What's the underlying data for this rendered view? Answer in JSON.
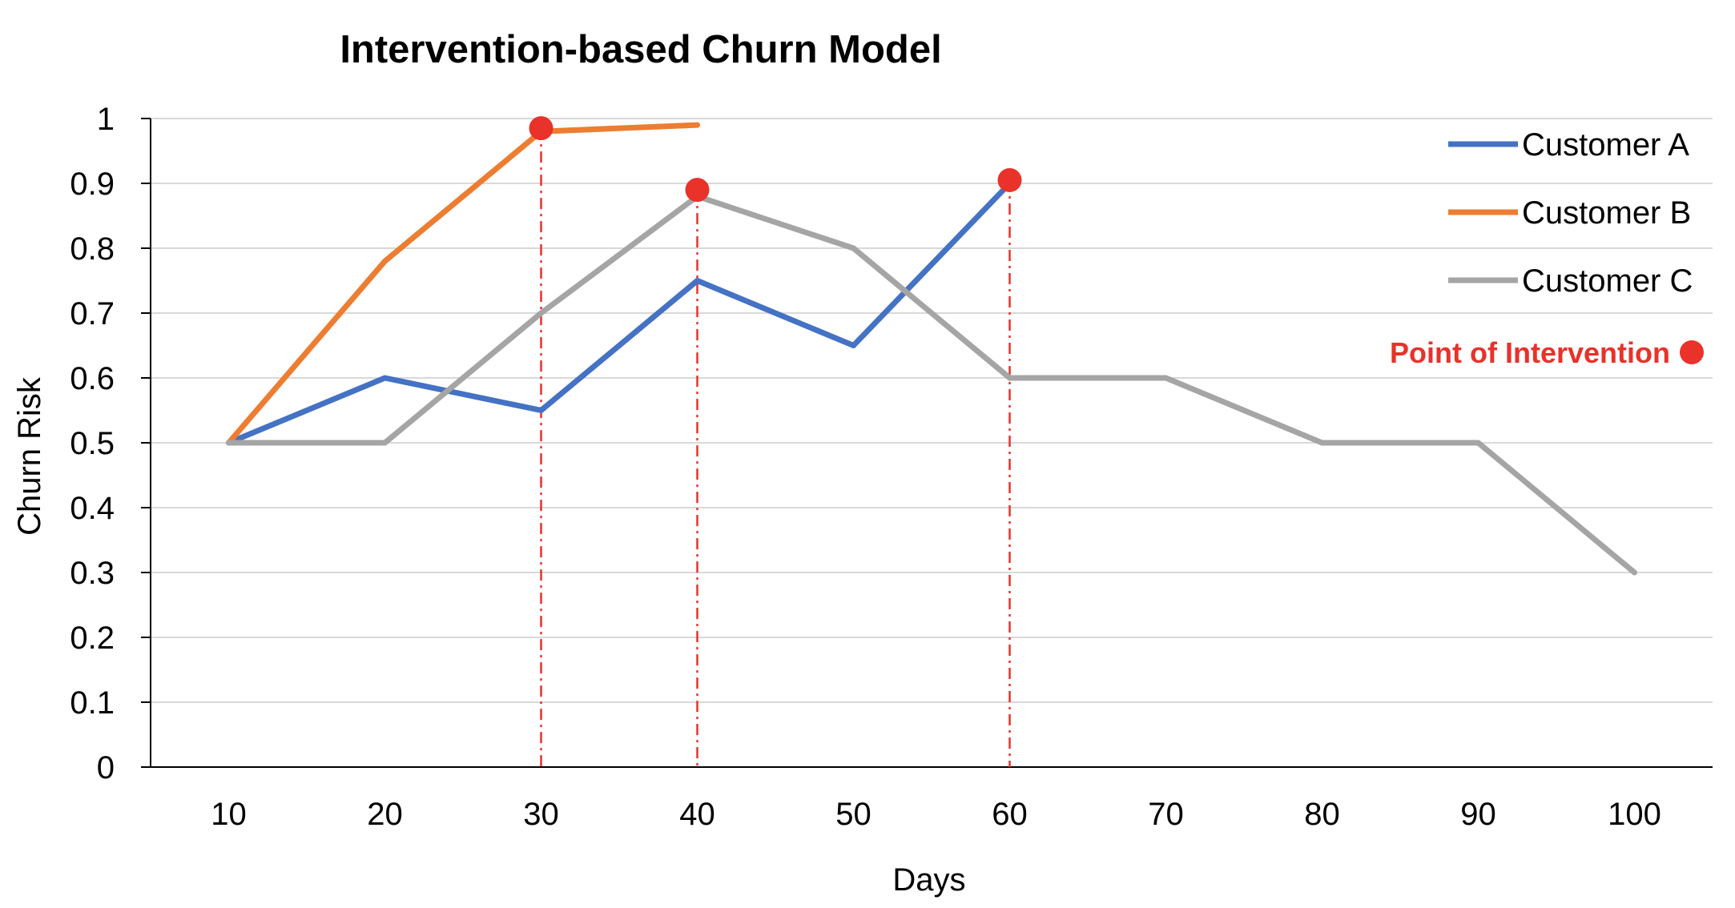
{
  "chart_data": {
    "type": "line",
    "title": "Intervention-based Churn Model",
    "xlabel": "Days",
    "ylabel": "Churn Risk",
    "categories": [
      "10",
      "20",
      "30",
      "40",
      "50",
      "60",
      "70",
      "80",
      "90",
      "100"
    ],
    "ylim": [
      0,
      1
    ],
    "yticks": [
      "0",
      "0.1",
      "0.2",
      "0.3",
      "0.4",
      "0.5",
      "0.6",
      "0.7",
      "0.8",
      "0.9",
      "1"
    ],
    "grid": true,
    "legend_position": "right",
    "series": [
      {
        "name": "Customer A",
        "color": "#4472C4",
        "values": [
          0.5,
          0.6,
          0.55,
          0.75,
          0.65,
          0.9,
          null,
          null,
          null,
          null
        ]
      },
      {
        "name": "Customer B",
        "color": "#ED7D31",
        "values": [
          0.5,
          0.78,
          0.98,
          0.99,
          null,
          null,
          null,
          null,
          null,
          null
        ]
      },
      {
        "name": "Customer C",
        "color": "#A5A5A5",
        "values": [
          0.5,
          0.5,
          0.7,
          0.88,
          0.8,
          0.6,
          0.6,
          0.5,
          0.5,
          0.3
        ]
      }
    ],
    "interventions": {
      "label": "Point of Intervention",
      "color": "#E8322A",
      "points": [
        {
          "x": "30",
          "y": 0.985
        },
        {
          "x": "40",
          "y": 0.89
        },
        {
          "x": "60",
          "y": 0.905
        }
      ]
    }
  }
}
